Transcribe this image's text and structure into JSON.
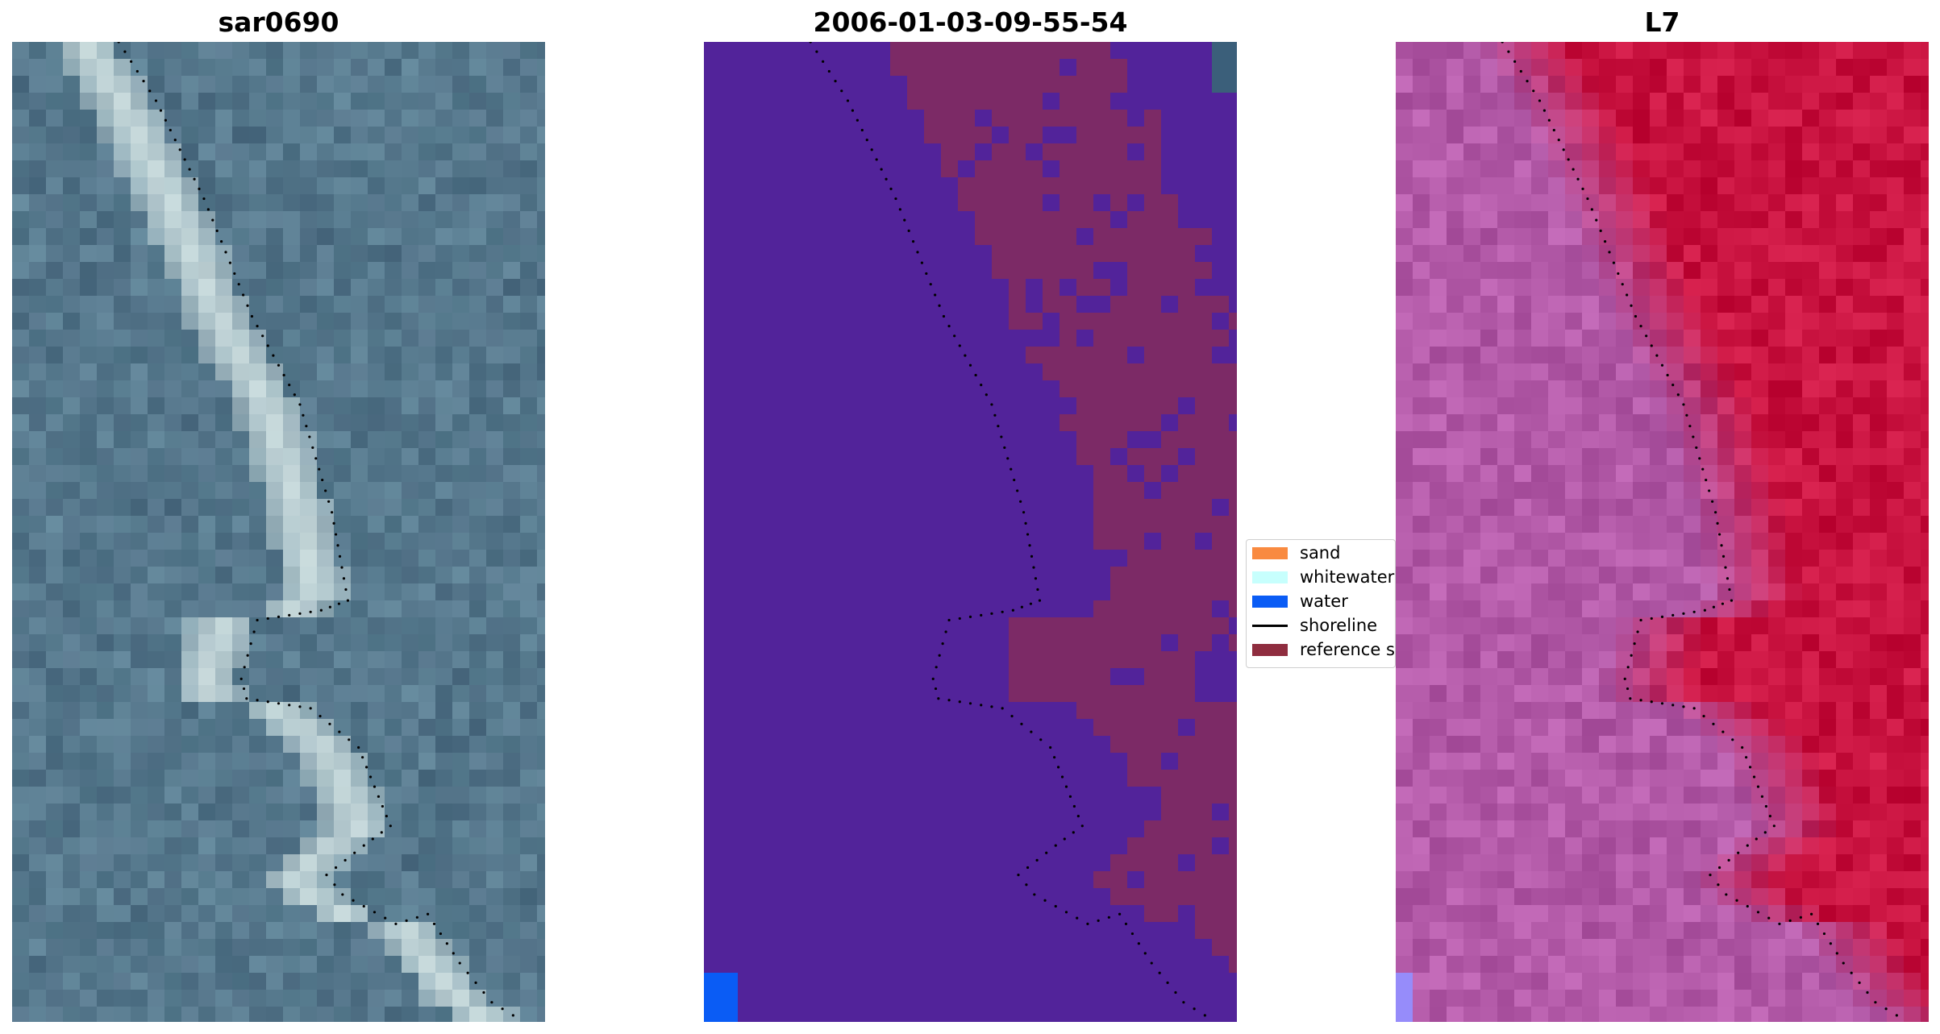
{
  "panels": [
    {
      "title": "sar0690"
    },
    {
      "title": "2006-01-03-09-55-54"
    },
    {
      "title": "L7"
    }
  ],
  "legend": {
    "items": [
      {
        "label": "sand",
        "color": "#f98a40",
        "kind": "patch"
      },
      {
        "label": "whitewater",
        "color": "#c7fffd",
        "kind": "patch"
      },
      {
        "label": "water",
        "color": "#0a5cf5",
        "kind": "patch"
      },
      {
        "label": "shoreline",
        "color": "#000000",
        "kind": "line"
      },
      {
        "label": "reference shoreline buffer",
        "color": "#8f2d3f",
        "kind": "patch"
      }
    ]
  },
  "colors": {
    "rgb_water": "#5a7f92",
    "rgb_whitewater": "#dfeeec",
    "class_background": "#52239a",
    "class_buffer": "#7c2a66",
    "class_edge": "#3b5f7a",
    "false_color_water": "#b35aa8",
    "false_color_land": "#c8123f",
    "shoreline_dots": "#000000"
  }
}
